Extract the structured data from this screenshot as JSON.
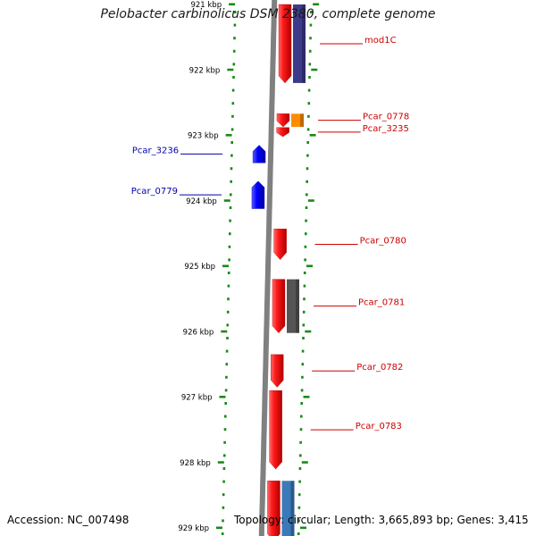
{
  "header": {
    "title": "Pelobacter carbinolicus DSM 2380, complete genome"
  },
  "footer": {
    "accession": "Accession: NC_007498",
    "summary": "Topology: circular; Length: 3,665,893 bp; Genes: 3,415"
  },
  "colors": {
    "forward_gene": "#ff1a1a",
    "reverse_gene": "#0000ff",
    "forward_label": "#cc0000",
    "reverse_label": "#0000aa",
    "tick": "#1a8a1a",
    "backbone": "#808080",
    "track_purple": "#3d3a8c",
    "track_orange": "#ff8c00",
    "track_gray": "#555555",
    "track_blue": "#3a7ab8"
  },
  "ruler": {
    "unit": "kbp",
    "labels": [
      "921 kbp",
      "922 kbp",
      "923 kbp",
      "924 kbp",
      "925 kbp",
      "926 kbp",
      "927 kbp",
      "928 kbp",
      "929 kbp"
    ]
  },
  "genes": {
    "forward": [
      {
        "name": "mod1C",
        "start": 921.0,
        "end": 922.2
      },
      {
        "name": "Pcar_0778",
        "start": 922.67,
        "end": 922.87
      },
      {
        "name": "Pcar_3235",
        "start": 922.88,
        "end": 923.02
      },
      {
        "name": "Pcar_0780",
        "start": 924.43,
        "end": 924.9
      },
      {
        "name": "Pcar_0781",
        "start": 925.2,
        "end": 926.02
      },
      {
        "name": "Pcar_0782",
        "start": 926.35,
        "end": 926.85
      },
      {
        "name": "Pcar_0783",
        "start": 926.9,
        "end": 928.1
      },
      {
        "name": "",
        "start": 928.28,
        "end": 929.2
      }
    ],
    "reverse": [
      {
        "name": "Pcar_3236",
        "start": 923.15,
        "end": 923.42
      },
      {
        "name": "Pcar_0779",
        "start": 923.7,
        "end": 924.12
      }
    ]
  },
  "feature_tracks": [
    {
      "color_key": "track_purple",
      "start": 921.0,
      "end": 922.2
    },
    {
      "color_key": "track_orange",
      "start": 922.67,
      "end": 922.87
    },
    {
      "color_key": "track_gray",
      "start": 925.2,
      "end": 926.02
    },
    {
      "color_key": "track_blue",
      "start": 928.28,
      "end": 929.2
    }
  ]
}
